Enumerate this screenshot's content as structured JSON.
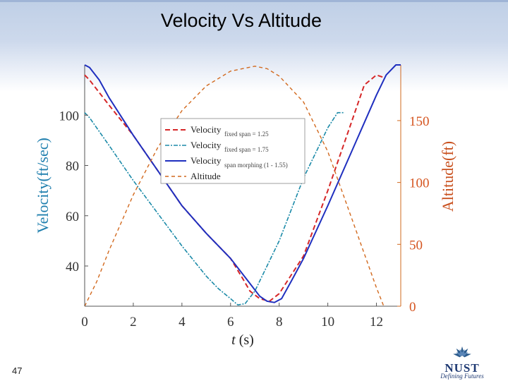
{
  "slide": {
    "title": "Velocity Vs Altitude",
    "page_number": "47"
  },
  "logo": {
    "name": "NUST",
    "tagline": "Defining Futures"
  },
  "chart_data": {
    "type": "line",
    "title": "",
    "xlabel_var": "t",
    "xlabel_unit": "(s)",
    "ylabel_left": "Velocity(ft/sec)",
    "ylabel_right": "Altitude(ft)",
    "xlim": [
      0,
      13
    ],
    "ylim_left": [
      24,
      120
    ],
    "ylim_right": [
      0,
      195
    ],
    "x_ticks": [
      0,
      2,
      4,
      6,
      8,
      10,
      12
    ],
    "y_ticks_left": [
      40,
      60,
      80,
      100
    ],
    "y_ticks_right": [
      0,
      50,
      100,
      150
    ],
    "legend": [
      {
        "main": "Velocity",
        "sub": "fixed span = 1.25",
        "color": "#d62728",
        "dash": "7,4",
        "width": 2
      },
      {
        "main": "Velocity",
        "sub": "fixed span = 1.75",
        "color": "#1b8aa8",
        "dash": "6,2,2,2",
        "width": 1.6
      },
      {
        "main": "Velocity",
        "sub": "span morphing (1 - 1.55)",
        "color": "#1f2fbf",
        "dash": "",
        "width": 2
      },
      {
        "main": "Altitude",
        "sub": "",
        "color": "#d2691e",
        "dash": "5,4",
        "width": 1.4
      }
    ],
    "series": [
      {
        "name": "Velocity fixed span = 1.25",
        "axis": "left",
        "color": "#d62728",
        "dash": "7,4",
        "width": 2,
        "x": [
          0,
          0.2,
          1,
          2,
          3,
          4,
          5,
          6,
          6.5,
          6.8,
          7.2,
          7.6,
          8,
          9,
          10,
          11,
          11.5,
          12,
          12.3
        ],
        "y": [
          116,
          114,
          104,
          92,
          78,
          64,
          53,
          43,
          35,
          30,
          27,
          26,
          29,
          44,
          70,
          98,
          112,
          116,
          115
        ]
      },
      {
        "name": "Velocity fixed span = 1.75",
        "axis": "left",
        "color": "#1b8aa8",
        "dash": "6,2,2,2",
        "width": 1.6,
        "x": [
          0,
          0.2,
          1,
          2,
          3,
          4,
          5,
          5.5,
          6,
          6.3,
          6.6,
          7,
          8,
          9,
          10,
          10.4,
          10.7
        ],
        "y": [
          101,
          99,
          88,
          74,
          61,
          48,
          36,
          31,
          27,
          24.5,
          25,
          30,
          50,
          75,
          95,
          101,
          101
        ]
      },
      {
        "name": "Velocity span morphing (1 - 1.55)",
        "axis": "left",
        "color": "#1f2fbf",
        "dash": "",
        "width": 2,
        "x": [
          0,
          0.2,
          0.6,
          1,
          2,
          3,
          4,
          5,
          6,
          6.8,
          7.2,
          7.5,
          7.8,
          8.1,
          8.5,
          9,
          10,
          11,
          12,
          12.4,
          12.8,
          13
        ],
        "y": [
          120,
          119,
          114,
          107,
          92,
          78,
          64,
          53,
          43,
          33,
          28,
          26,
          25.5,
          27,
          34,
          43,
          64,
          86,
          108,
          116,
          120,
          120
        ]
      },
      {
        "name": "Altitude",
        "axis": "right",
        "color": "#d2691e",
        "dash": "5,4",
        "width": 1.4,
        "x": [
          0,
          0.5,
          1,
          2,
          3,
          4,
          5,
          6,
          7,
          7.5,
          8,
          9,
          10,
          11,
          12,
          12.3
        ],
        "y": [
          0,
          20,
          45,
          90,
          128,
          158,
          178,
          190,
          194,
          192,
          186,
          165,
          125,
          70,
          15,
          0
        ]
      }
    ]
  }
}
